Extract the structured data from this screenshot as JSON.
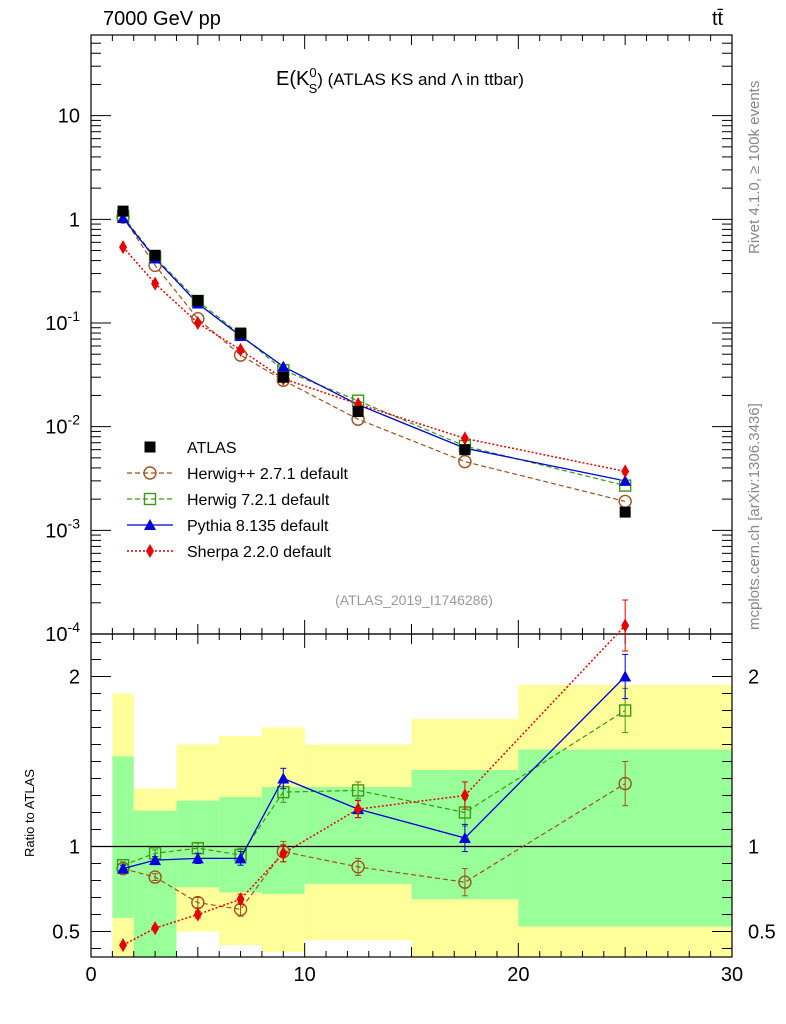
{
  "header": {
    "left": "7000 GeV pp",
    "right": "tt̄"
  },
  "side_labels": {
    "top": "Rivet 4.1.0, ≥ 100k events",
    "bottom": "mcplots.cern.ch [arXiv:1306.3436]"
  },
  "chart_data": [
    {
      "type": "line",
      "panel": "main",
      "title": "E(K⁰S) (ATLAS KS and Λ in ttbar)",
      "title_main": "E(K",
      "title_sup": "0",
      "title_sub": "S",
      "title_rest": ") (ATLAS KS and Λ in ttbar)",
      "analysis_tag": "(ATLAS_2019_I1746286)",
      "yscale": "log",
      "xlim": [
        0,
        30
      ],
      "ylim": [
        0.0001,
        60
      ],
      "ytick_values": [
        0.0001,
        0.001,
        0.01,
        0.1,
        1,
        10
      ],
      "ytick_labels": [
        {
          "base": "10",
          "exp": "-4"
        },
        {
          "base": "10",
          "exp": "-3"
        },
        {
          "base": "10",
          "exp": "-2"
        },
        {
          "base": "10",
          "exp": "-1"
        },
        {
          "base": "1",
          "exp": ""
        },
        {
          "base": "10",
          "exp": ""
        }
      ],
      "x": [
        1.5,
        3,
        5,
        7,
        9,
        12.5,
        17.5,
        25
      ],
      "series": [
        {
          "name": "ATLAS",
          "key": "atlas",
          "color": "#000000",
          "values": [
            1.2,
            0.45,
            0.165,
            0.08,
            0.03,
            0.014,
            0.006,
            0.0015
          ]
        },
        {
          "name": "Herwig++ 2.7.1 default",
          "key": "herwigpp",
          "color": "#a0521e",
          "values": [
            1.05,
            0.36,
            0.11,
            0.049,
            0.028,
            0.0118,
            0.0046,
            0.0019
          ]
        },
        {
          "name": "Herwig 7.2.1 default",
          "key": "herwig7",
          "color": "#3a9a12",
          "values": [
            1.07,
            0.43,
            0.163,
            0.077,
            0.035,
            0.0178,
            0.0065,
            0.0027
          ]
        },
        {
          "name": "Pythia 8.135 default",
          "key": "pythia",
          "color": "#0000d8",
          "values": [
            1.03,
            0.42,
            0.154,
            0.075,
            0.038,
            0.0163,
            0.0062,
            0.003
          ]
        },
        {
          "name": "Sherpa 2.2.0 default",
          "key": "sherpa",
          "color": "#e80000",
          "values": [
            0.54,
            0.24,
            0.1,
            0.055,
            0.029,
            0.0165,
            0.0077,
            0.0037
          ]
        }
      ]
    },
    {
      "type": "line",
      "panel": "ratio",
      "ylabel": "Ratio to ATLAS",
      "xlim": [
        0,
        30
      ],
      "ylim": [
        0.35,
        2.25
      ],
      "xticks": [
        0,
        10,
        20,
        30
      ],
      "yticks": [
        0.5,
        1,
        2
      ],
      "band_edges": [
        1,
        2,
        4,
        6,
        8,
        10,
        15,
        20,
        30
      ],
      "band_yellow_low": [
        0.35,
        0.35,
        0.5,
        0.42,
        0.38,
        0.45,
        0.35,
        0.35
      ],
      "band_yellow_high": [
        1.9,
        1.34,
        1.6,
        1.65,
        1.7,
        1.6,
        1.75,
        1.95
      ],
      "band_green_low": [
        0.58,
        0.35,
        0.76,
        0.73,
        0.72,
        0.78,
        0.69,
        0.53
      ],
      "band_green_high": [
        1.53,
        1.21,
        1.27,
        1.29,
        1.35,
        1.35,
        1.45,
        1.57
      ],
      "x": [
        1.5,
        3,
        5,
        7,
        9,
        12.5,
        17.5,
        25
      ],
      "series": [
        {
          "name": "Herwig++ 2.7.1 default",
          "key": "herwigpp",
          "values": [
            0.87,
            0.82,
            0.67,
            0.63,
            0.97,
            0.88,
            0.79,
            1.37
          ],
          "errors": [
            0.02,
            0.02,
            0.03,
            0.04,
            0.06,
            0.05,
            0.08,
            0.13
          ]
        },
        {
          "name": "Herwig 7.2.1 default",
          "key": "herwig7",
          "values": [
            0.89,
            0.96,
            0.99,
            0.95,
            1.32,
            1.33,
            1.2,
            1.8
          ],
          "errors": [
            0.02,
            0.02,
            0.03,
            0.04,
            0.06,
            0.05,
            0.08,
            0.13
          ]
        },
        {
          "name": "Pythia 8.135 default",
          "key": "pythia",
          "values": [
            0.87,
            0.92,
            0.93,
            0.93,
            1.4,
            1.22,
            1.05,
            2.0
          ],
          "errors": [
            0.02,
            0.02,
            0.03,
            0.04,
            0.06,
            0.05,
            0.08,
            0.13
          ]
        },
        {
          "name": "Sherpa 2.2.0 default",
          "key": "sherpa",
          "values": [
            0.42,
            0.52,
            0.6,
            0.69,
            0.96,
            1.22,
            1.3,
            2.3
          ],
          "errors": [
            0.01,
            0.01,
            0.02,
            0.03,
            0.05,
            0.05,
            0.08,
            0.15
          ]
        }
      ]
    }
  ]
}
